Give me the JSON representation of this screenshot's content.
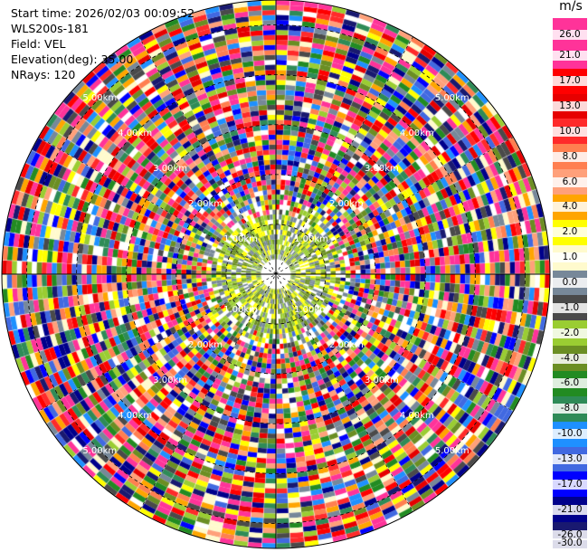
{
  "info": {
    "start_time": "Start time: 2026/02/03 00:09:52",
    "instrument": "WLS200s-181",
    "field": "Field: VEL",
    "elevation": "Elevation(deg): 35.00",
    "nrays": "NRays: 120"
  },
  "chart_data": {
    "type": "heatmap",
    "projection": "polar-ppi",
    "title": "",
    "field": "VEL",
    "elevation_deg": 35.0,
    "n_rays": 120,
    "unit": "m/s",
    "max_range_km": 5.5,
    "range_ring_labels": [
      "1.00km",
      "2.00km",
      "3.00km",
      "4.00km",
      "5.00km"
    ],
    "range_rings_km": [
      1,
      2,
      3,
      4,
      5
    ],
    "colorbar": {
      "ticks": [
        "26.0",
        "21.0",
        "17.0",
        "13.0",
        "10.0",
        "8.0",
        "6.0",
        "4.0",
        "2.0",
        "1.0",
        "0.0",
        "-1.0",
        "-2.0",
        "-4.0",
        "-6.0",
        "-8.0",
        "-10.0",
        "-13.0",
        "-17.0",
        "-21.0",
        "-26.0",
        "-30.0"
      ],
      "colors": [
        "#ff3399",
        "#ff3399",
        "#ff0000",
        "#e60000",
        "#ff2a2a",
        "#ff7f50",
        "#ffa07a",
        "#ffa500",
        "#ffff00",
        "#fffacd",
        "#778899",
        "#4a4a4a",
        "#9acd32",
        "#6b8e23",
        "#228b22",
        "#2e8b57",
        "#1e90ff",
        "#4169e1",
        "#0000ff",
        "#00008b",
        "#191970"
      ]
    },
    "near_field_colors": [
      "#9acd32",
      "#6b8e23",
      "#ffff00",
      "#778899"
    ]
  }
}
